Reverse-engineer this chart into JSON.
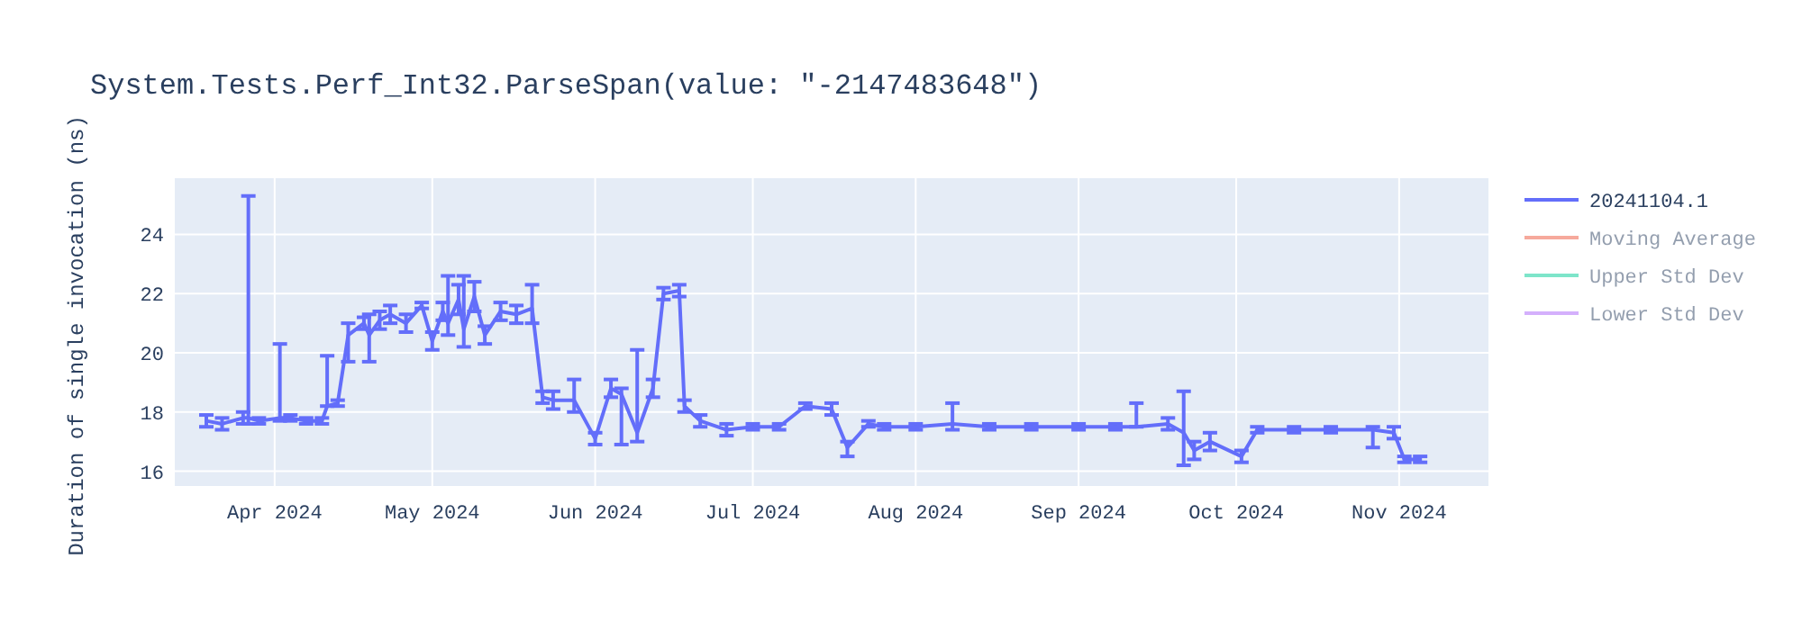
{
  "chart_data": {
    "type": "line",
    "title": "System.Tests.Perf_Int32.ParseSpan(value: \"-2147483648\")",
    "ylabel": "Duration of single invocation (ns)",
    "x": [
      "2024-03-19",
      "2024-03-22",
      "2024-03-26",
      "2024-03-27",
      "2024-03-29",
      "2024-04-02",
      "2024-04-04",
      "2024-04-07",
      "2024-04-10",
      "2024-04-11",
      "2024-04-13",
      "2024-04-15",
      "2024-04-18",
      "2024-04-19",
      "2024-04-21",
      "2024-04-23",
      "2024-04-26",
      "2024-04-29",
      "2024-05-01",
      "2024-05-03",
      "2024-05-04",
      "2024-05-06",
      "2024-05-07",
      "2024-05-09",
      "2024-05-11",
      "2024-05-14",
      "2024-05-17",
      "2024-05-20",
      "2024-05-22",
      "2024-05-24",
      "2024-05-28",
      "2024-06-01",
      "2024-06-04",
      "2024-06-06",
      "2024-06-09",
      "2024-06-12",
      "2024-06-14",
      "2024-06-17",
      "2024-06-18",
      "2024-06-21",
      "2024-06-26",
      "2024-07-01",
      "2024-07-06",
      "2024-07-11",
      "2024-07-16",
      "2024-07-19",
      "2024-07-23",
      "2024-07-26",
      "2024-08-01",
      "2024-08-08",
      "2024-08-15",
      "2024-08-23",
      "2024-09-01",
      "2024-09-08",
      "2024-09-12",
      "2024-09-18",
      "2024-09-21",
      "2024-09-23",
      "2024-09-26",
      "2024-10-02",
      "2024-10-05",
      "2024-10-12",
      "2024-10-19",
      "2024-10-27",
      "2024-10-31",
      "2024-11-02",
      "2024-11-05"
    ],
    "series": [
      {
        "name": "20241104.1",
        "color": "#636efa",
        "values": [
          17.7,
          17.6,
          17.8,
          17.8,
          17.7,
          17.8,
          17.8,
          17.7,
          17.7,
          18.2,
          18.3,
          20.6,
          21.0,
          20.6,
          21.1,
          21.3,
          21.0,
          21.6,
          20.4,
          21.4,
          21.0,
          21.8,
          20.8,
          21.9,
          20.6,
          21.4,
          21.3,
          21.5,
          18.5,
          18.4,
          18.4,
          17.1,
          18.8,
          18.6,
          17.3,
          18.8,
          22.0,
          22.1,
          18.2,
          17.7,
          17.4,
          17.5,
          17.5,
          18.2,
          18.1,
          16.8,
          17.6,
          17.5,
          17.5,
          17.6,
          17.5,
          17.5,
          17.5,
          17.5,
          17.5,
          17.6,
          17.3,
          16.7,
          17.0,
          16.5,
          17.4,
          17.4,
          17.4,
          17.4,
          17.3,
          16.4,
          16.4
        ],
        "errors": [
          0.2,
          0.2,
          0.2,
          [
            17.6,
            25.3
          ],
          0.1,
          [
            17.7,
            20.3
          ],
          0.1,
          0.1,
          0.1,
          [
            18.2,
            19.9
          ],
          0.1,
          [
            19.7,
            21.0
          ],
          0.2,
          [
            19.7,
            21.3
          ],
          0.3,
          0.3,
          0.3,
          0.1,
          0.3,
          0.3,
          [
            20.6,
            22.6
          ],
          0.5,
          [
            20.2,
            22.6
          ],
          0.5,
          0.3,
          0.3,
          0.3,
          [
            21.0,
            22.3
          ],
          0.2,
          0.3,
          [
            18.0,
            19.1
          ],
          0.2,
          0.3,
          [
            16.9,
            18.8
          ],
          [
            17.0,
            20.1
          ],
          0.3,
          0.2,
          0.2,
          0.2,
          0.2,
          0.2,
          0.1,
          0.1,
          0.1,
          0.2,
          [
            16.5,
            17.0
          ],
          0.1,
          0.1,
          0.1,
          [
            17.4,
            18.3
          ],
          0.1,
          0.1,
          0.1,
          0.1,
          [
            17.5,
            18.3
          ],
          0.2,
          [
            16.2,
            18.7
          ],
          0.3,
          0.3,
          0.2,
          0.1,
          0.1,
          0.1,
          [
            16.8,
            17.5
          ],
          0.2,
          0.1,
          0.1
        ]
      },
      {
        "name": "Moving Average",
        "color": "#ef553b",
        "values": [
          null,
          null,
          null,
          null,
          null,
          null,
          null,
          null,
          null,
          null,
          null,
          null,
          null,
          null,
          null,
          null,
          null,
          null,
          null,
          null,
          null,
          null,
          null,
          null,
          null,
          null,
          null,
          null,
          null,
          null,
          null,
          null,
          null,
          null,
          null,
          null,
          null,
          null,
          null,
          null,
          null,
          null,
          null,
          null,
          null,
          null,
          null,
          null,
          null,
          null,
          null,
          null,
          null,
          null,
          null,
          null,
          null,
          null,
          null,
          null,
          null,
          null,
          null,
          null,
          null,
          null,
          null
        ]
      },
      {
        "name": "Upper Std Dev",
        "color": "#00cc96",
        "values": [
          null,
          null,
          null,
          null,
          null,
          null,
          null,
          null,
          null,
          null,
          null,
          null,
          null,
          null,
          null,
          null,
          null,
          null,
          null,
          null,
          null,
          null,
          null,
          null,
          null,
          null,
          null,
          null,
          null,
          null,
          null,
          null,
          null,
          null,
          null,
          null,
          null,
          null,
          null,
          null,
          null,
          null,
          null,
          null,
          null,
          null,
          null,
          null,
          null,
          null,
          null,
          null,
          null,
          null,
          null,
          null,
          null,
          null,
          null,
          null,
          null,
          null,
          null,
          null,
          null,
          null,
          null
        ]
      },
      {
        "name": "Lower Std Dev",
        "color": "#ab63fa",
        "values": [
          null,
          null,
          null,
          null,
          null,
          null,
          null,
          null,
          null,
          null,
          null,
          null,
          null,
          null,
          null,
          null,
          null,
          null,
          null,
          null,
          null,
          null,
          null,
          null,
          null,
          null,
          null,
          null,
          null,
          null,
          null,
          null,
          null,
          null,
          null,
          null,
          null,
          null,
          null,
          null,
          null,
          null,
          null,
          null,
          null,
          null,
          null,
          null,
          null,
          null,
          null,
          null,
          null,
          null,
          null,
          null,
          null,
          null,
          null,
          null,
          null,
          null,
          null,
          null,
          null,
          null,
          null
        ]
      }
    ],
    "ylim": [
      15.5,
      25.9
    ],
    "yticks": [
      16,
      18,
      20,
      22,
      24
    ],
    "xlim": [
      "2024-03-13",
      "2024-11-18"
    ],
    "xticks": [
      {
        "value": "2024-04-01",
        "label": "Apr 2024"
      },
      {
        "value": "2024-05-01",
        "label": "May 2024"
      },
      {
        "value": "2024-06-01",
        "label": "Jun 2024"
      },
      {
        "value": "2024-07-01",
        "label": "Jul 2024"
      },
      {
        "value": "2024-08-01",
        "label": "Aug 2024"
      },
      {
        "value": "2024-09-01",
        "label": "Sep 2024"
      },
      {
        "value": "2024-10-01",
        "label": "Oct 2024"
      },
      {
        "value": "2024-11-01",
        "label": "Nov 2024"
      }
    ],
    "grid": true,
    "legend": "right"
  }
}
